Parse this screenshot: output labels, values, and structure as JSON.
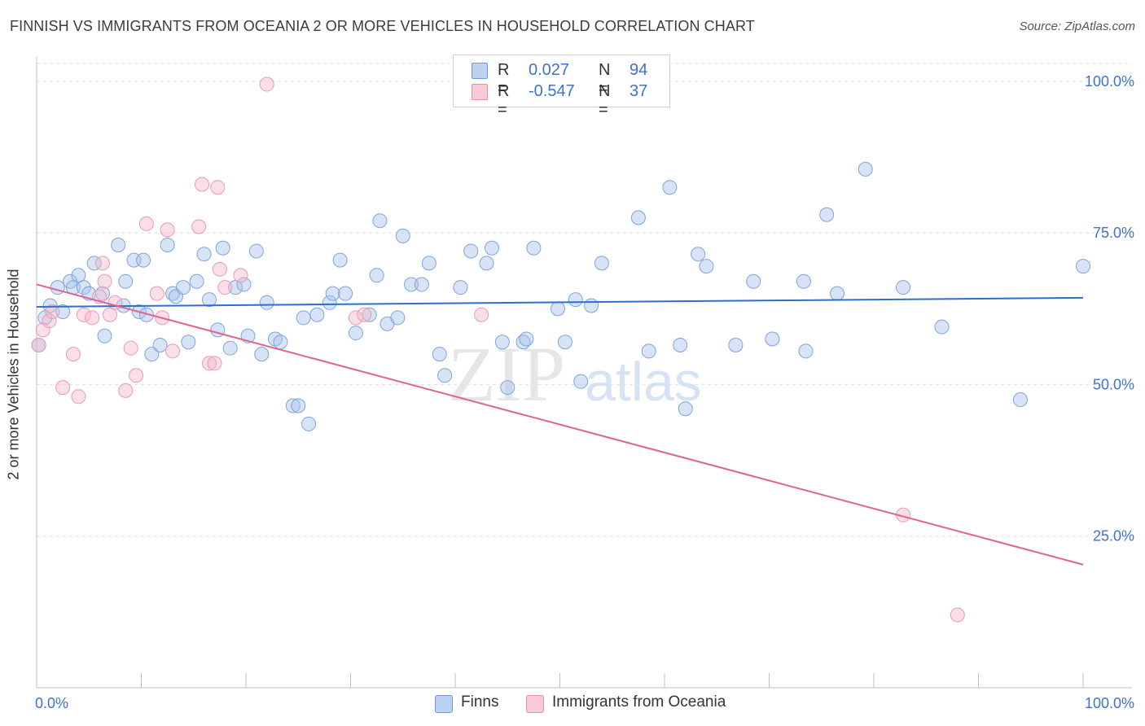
{
  "title": "FINNISH VS IMMIGRANTS FROM OCEANIA 2 OR MORE VEHICLES IN HOUSEHOLD CORRELATION CHART",
  "source": "Source: ZipAtlas.com",
  "watermark": {
    "zip": "ZIP",
    "atlas": "atlas"
  },
  "legend_top": [
    {
      "r_label": "R =",
      "r_value": "0.027",
      "n_label": "N =",
      "n_value": "94"
    },
    {
      "r_label": "R =",
      "r_value": "-0.547",
      "n_label": "N =",
      "n_value": "37"
    }
  ],
  "legend_bottom": [
    "Finns",
    "Immigrants from Oceania"
  ],
  "chart_data": {
    "type": "scatter",
    "xlabel": "",
    "ylabel": "2 or more Vehicles in Household",
    "xlim": [
      0,
      100
    ],
    "ylim": [
      0,
      104
    ],
    "x_tick_labels": [
      "0.0%",
      "100.0%"
    ],
    "y_tick_labels": [
      "25.0%",
      "50.0%",
      "75.0%",
      "100.0%"
    ],
    "y_ticks": [
      25,
      50,
      75,
      100
    ],
    "grid": "horizontal dashed",
    "legend_position": "top-center and bottom",
    "colors": {
      "finns": "#a9c4ec",
      "finns_line": "#2f6fcc",
      "oceania": "#f5b8cb",
      "oceania_line": "#e0638f",
      "tick_text": "#3f73c9"
    },
    "series": [
      {
        "name": "Finns",
        "trend": [
          [
            0,
            62.8
          ],
          [
            100,
            64.3
          ]
        ],
        "points": [
          [
            0.2,
            56.5
          ],
          [
            0.8,
            61
          ],
          [
            1.3,
            63
          ],
          [
            2,
            66
          ],
          [
            2.5,
            62
          ],
          [
            3.2,
            67
          ],
          [
            3.5,
            66
          ],
          [
            4,
            68
          ],
          [
            4.5,
            66
          ],
          [
            5,
            65
          ],
          [
            5.5,
            70
          ],
          [
            6.3,
            65
          ],
          [
            6.5,
            58
          ],
          [
            7.8,
            73
          ],
          [
            8.3,
            63
          ],
          [
            8.5,
            67
          ],
          [
            9.3,
            70.5
          ],
          [
            9.8,
            62
          ],
          [
            10.2,
            70.5
          ],
          [
            10.5,
            61.5
          ],
          [
            11,
            55
          ],
          [
            11.8,
            56.5
          ],
          [
            12.5,
            73
          ],
          [
            13,
            65
          ],
          [
            13.3,
            64.5
          ],
          [
            14,
            66
          ],
          [
            14.5,
            57
          ],
          [
            15.3,
            67
          ],
          [
            16,
            71.5
          ],
          [
            16.5,
            64
          ],
          [
            17.3,
            59
          ],
          [
            17.8,
            72.5
          ],
          [
            18.5,
            56
          ],
          [
            19,
            66
          ],
          [
            19.8,
            66.5
          ],
          [
            20.2,
            58
          ],
          [
            21,
            72
          ],
          [
            21.5,
            55
          ],
          [
            22,
            63.5
          ],
          [
            22.8,
            57.5
          ],
          [
            23.3,
            57
          ],
          [
            24.5,
            46.5
          ],
          [
            25,
            46.5
          ],
          [
            25.5,
            61
          ],
          [
            26,
            43.5
          ],
          [
            26.8,
            61.5
          ],
          [
            28,
            63.5
          ],
          [
            28.3,
            65
          ],
          [
            29,
            70.5
          ],
          [
            29.5,
            65
          ],
          [
            30.5,
            58.5
          ],
          [
            31.8,
            61.5
          ],
          [
            32.5,
            68
          ],
          [
            32.8,
            77
          ],
          [
            33.5,
            60
          ],
          [
            34.5,
            61
          ],
          [
            35,
            74.5
          ],
          [
            35.8,
            66.5
          ],
          [
            36.8,
            66.5
          ],
          [
            37.5,
            70
          ],
          [
            38.5,
            55
          ],
          [
            39,
            51.5
          ],
          [
            40.5,
            66
          ],
          [
            41.5,
            72
          ],
          [
            43,
            70
          ],
          [
            43.5,
            72.5
          ],
          [
            44.5,
            57
          ],
          [
            45,
            49.5
          ],
          [
            46.5,
            57
          ],
          [
            46.8,
            57.5
          ],
          [
            47.5,
            72.5
          ],
          [
            49.8,
            62.5
          ],
          [
            50.5,
            57
          ],
          [
            51.5,
            64
          ],
          [
            52,
            50.5
          ],
          [
            53,
            63
          ],
          [
            54,
            70
          ],
          [
            57.5,
            77.5
          ],
          [
            58.5,
            55.5
          ],
          [
            60.5,
            82.5
          ],
          [
            61.5,
            56.5
          ],
          [
            62,
            46
          ],
          [
            63.2,
            71.5
          ],
          [
            64,
            69.5
          ],
          [
            66.8,
            56.5
          ],
          [
            68.5,
            67
          ],
          [
            70.3,
            57.5
          ],
          [
            73.3,
            67
          ],
          [
            73.5,
            55.5
          ],
          [
            75.5,
            78
          ],
          [
            76.5,
            65
          ],
          [
            79.2,
            85.5
          ],
          [
            82.8,
            66
          ],
          [
            86.5,
            59.5
          ],
          [
            94,
            47.5
          ],
          [
            100,
            69.5
          ]
        ]
      },
      {
        "name": "Immigrants from Oceania",
        "trend": [
          [
            0,
            66.5
          ],
          [
            100,
            20.3
          ]
        ],
        "points": [
          [
            0.2,
            56.5
          ],
          [
            0.6,
            59
          ],
          [
            1.2,
            60.5
          ],
          [
            1.5,
            62
          ],
          [
            2.5,
            49.5
          ],
          [
            3.5,
            55
          ],
          [
            4,
            48
          ],
          [
            4.5,
            61.5
          ],
          [
            5.3,
            61
          ],
          [
            6,
            64.5
          ],
          [
            6.3,
            70
          ],
          [
            6.5,
            67
          ],
          [
            7,
            61.5
          ],
          [
            7.5,
            63.5
          ],
          [
            8.5,
            49
          ],
          [
            9,
            56
          ],
          [
            9.5,
            51.5
          ],
          [
            10.5,
            76.5
          ],
          [
            11.5,
            65
          ],
          [
            12,
            61
          ],
          [
            12.5,
            75.5
          ],
          [
            13,
            55.5
          ],
          [
            15.5,
            76
          ],
          [
            15.8,
            83
          ],
          [
            16.5,
            53.5
          ],
          [
            17,
            53.5
          ],
          [
            17.3,
            82.5
          ],
          [
            17.5,
            69
          ],
          [
            18,
            66
          ],
          [
            19.5,
            68
          ],
          [
            22,
            99.5
          ],
          [
            30.5,
            61
          ],
          [
            31.3,
            61.5
          ],
          [
            42.5,
            61.5
          ],
          [
            82.8,
            28.5
          ],
          [
            88,
            12
          ]
        ]
      }
    ]
  }
}
